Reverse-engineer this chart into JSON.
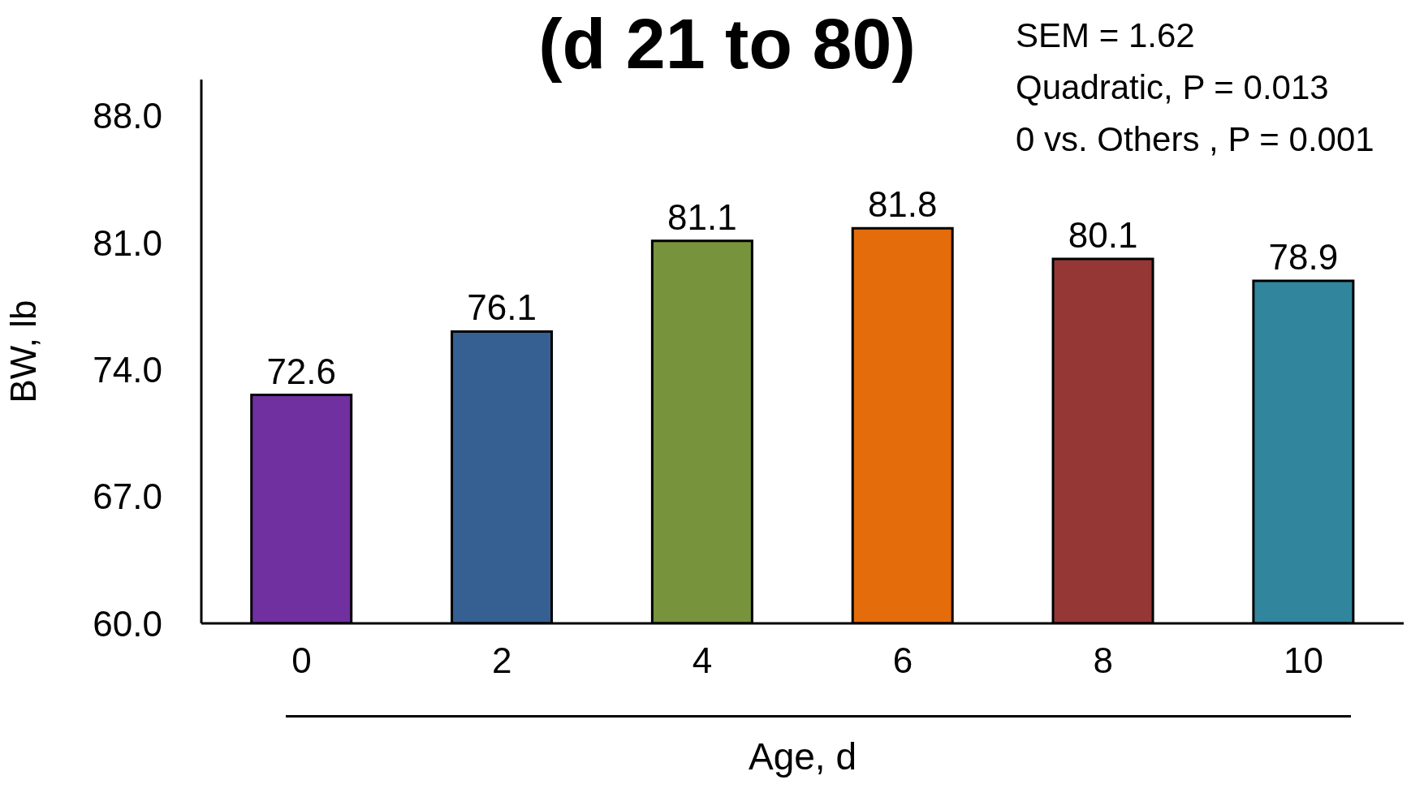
{
  "chart_data": {
    "type": "bar",
    "title": "(d 21 to 80)",
    "xlabel": "Age, d",
    "ylabel": "BW, lb",
    "categories": [
      "0",
      "2",
      "4",
      "6",
      "8",
      "10"
    ],
    "values": [
      72.6,
      76.1,
      81.1,
      81.8,
      80.1,
      78.9
    ],
    "colors": [
      "#7030a0",
      "#376092",
      "#77933c",
      "#e46c0a",
      "#953735",
      "#31859c"
    ],
    "ylim": [
      60,
      90
    ],
    "yticks": [
      {
        "value": 60,
        "label": "60.0"
      },
      {
        "value": 67,
        "label": "67.0"
      },
      {
        "value": 74,
        "label": "74.0"
      },
      {
        "value": 81,
        "label": "81.0"
      },
      {
        "value": 88,
        "label": "88.0"
      }
    ],
    "data_labels": true,
    "annotations": [
      "SEM = 1.62",
      "Quadratic, P = 0.013",
      "0 vs. Others , P = 0.001"
    ]
  }
}
